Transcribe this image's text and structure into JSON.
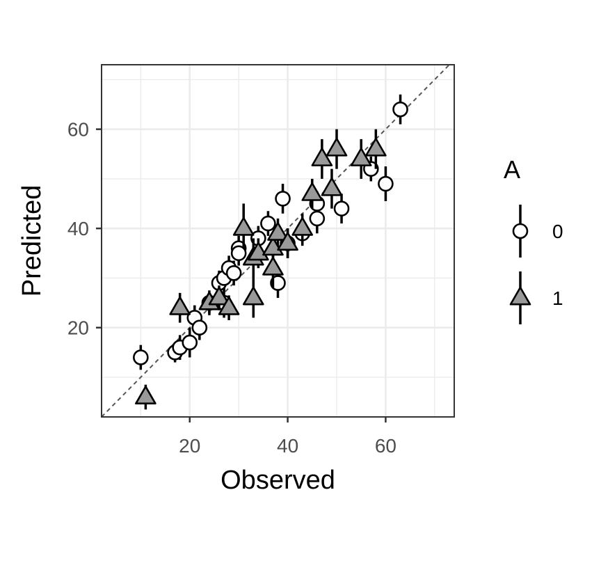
{
  "chart_data": {
    "type": "scatter",
    "xlabel": "Observed",
    "ylabel": "Predicted",
    "xlim": [
      2,
      74
    ],
    "ylim": [
      2,
      73
    ],
    "xticks": [
      20,
      40,
      60
    ],
    "yticks": [
      20,
      40,
      60
    ],
    "grid": true,
    "reference_line": "y = x (dashed)",
    "legend": {
      "title": "A",
      "placement": "right"
    },
    "colors": {
      "series0_fill": "#ffffff",
      "series1_fill": "#999999",
      "stroke": "#000000",
      "grid": "#ebebeb",
      "reference": "#555555"
    },
    "series": [
      {
        "name": "0",
        "marker": "circle",
        "points": [
          {
            "x": 10,
            "y": 14,
            "lo": 11.5,
            "hi": 16.5
          },
          {
            "x": 17,
            "y": 15,
            "lo": 13,
            "hi": 17
          },
          {
            "x": 18,
            "y": 16,
            "lo": 13.5,
            "hi": 18.5
          },
          {
            "x": 20,
            "y": 17,
            "lo": 14,
            "hi": 20
          },
          {
            "x": 21,
            "y": 22,
            "lo": 19.5,
            "hi": 24.5
          },
          {
            "x": 22,
            "y": 20,
            "lo": 17.5,
            "hi": 22.5
          },
          {
            "x": 24,
            "y": 25,
            "lo": 22.5,
            "hi": 27.5
          },
          {
            "x": 26,
            "y": 29,
            "lo": 26.5,
            "hi": 31.5
          },
          {
            "x": 27,
            "y": 30,
            "lo": 27.5,
            "hi": 32.5
          },
          {
            "x": 27,
            "y": 25,
            "lo": 22,
            "hi": 28
          },
          {
            "x": 28,
            "y": 32,
            "lo": 29.5,
            "hi": 34.5
          },
          {
            "x": 29,
            "y": 31,
            "lo": 28.5,
            "hi": 33.5
          },
          {
            "x": 30,
            "y": 36,
            "lo": 33.5,
            "hi": 38.5
          },
          {
            "x": 30,
            "y": 35,
            "lo": 32.5,
            "hi": 37.5
          },
          {
            "x": 34,
            "y": 38,
            "lo": 35.5,
            "hi": 40.5
          },
          {
            "x": 36,
            "y": 41,
            "lo": 38.5,
            "hi": 43.5
          },
          {
            "x": 38,
            "y": 29,
            "lo": 26,
            "hi": 32
          },
          {
            "x": 39,
            "y": 46,
            "lo": 43,
            "hi": 49
          },
          {
            "x": 40,
            "y": 37,
            "lo": 34,
            "hi": 40
          },
          {
            "x": 43,
            "y": 39,
            "lo": 36.5,
            "hi": 41.5
          },
          {
            "x": 46,
            "y": 45,
            "lo": 42.5,
            "hi": 47.5
          },
          {
            "x": 46,
            "y": 42,
            "lo": 39,
            "hi": 45
          },
          {
            "x": 51,
            "y": 44,
            "lo": 41,
            "hi": 47
          },
          {
            "x": 57,
            "y": 52,
            "lo": 49.5,
            "hi": 54.5
          },
          {
            "x": 60,
            "y": 49,
            "lo": 45.5,
            "hi": 52.5
          },
          {
            "x": 63,
            "y": 64,
            "lo": 61,
            "hi": 67
          }
        ]
      },
      {
        "name": "1",
        "marker": "triangle",
        "points": [
          {
            "x": 11,
            "y": 6,
            "lo": 3.5,
            "hi": 8.5
          },
          {
            "x": 18,
            "y": 24,
            "lo": 21,
            "hi": 27
          },
          {
            "x": 24,
            "y": 25,
            "lo": 23,
            "hi": 27
          },
          {
            "x": 26,
            "y": 26,
            "lo": 23.5,
            "hi": 28.5
          },
          {
            "x": 28,
            "y": 24,
            "lo": 21.5,
            "hi": 26.5
          },
          {
            "x": 31,
            "y": 40,
            "lo": 36,
            "hi": 45
          },
          {
            "x": 33,
            "y": 26,
            "lo": 22,
            "hi": 30
          },
          {
            "x": 33,
            "y": 34,
            "lo": 30,
            "hi": 38
          },
          {
            "x": 34,
            "y": 35,
            "lo": 32,
            "hi": 38
          },
          {
            "x": 37,
            "y": 32,
            "lo": 28,
            "hi": 36
          },
          {
            "x": 37,
            "y": 36,
            "lo": 33,
            "hi": 39
          },
          {
            "x": 38,
            "y": 39,
            "lo": 36,
            "hi": 42
          },
          {
            "x": 40,
            "y": 37,
            "lo": 34,
            "hi": 40
          },
          {
            "x": 43,
            "y": 40,
            "lo": 37,
            "hi": 43
          },
          {
            "x": 45,
            "y": 47,
            "lo": 44,
            "hi": 50
          },
          {
            "x": 47,
            "y": 54,
            "lo": 50,
            "hi": 58
          },
          {
            "x": 49,
            "y": 48,
            "lo": 44,
            "hi": 52
          },
          {
            "x": 50,
            "y": 56,
            "lo": 52,
            "hi": 60
          },
          {
            "x": 55,
            "y": 54,
            "lo": 50,
            "hi": 58
          },
          {
            "x": 58,
            "y": 56,
            "lo": 52,
            "hi": 60
          }
        ]
      }
    ]
  }
}
